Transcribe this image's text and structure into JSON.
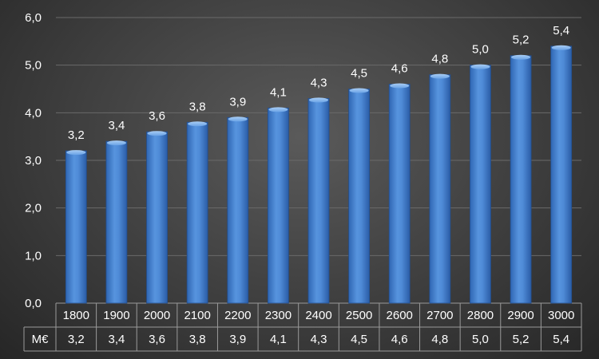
{
  "chart_data": {
    "type": "bar",
    "categories": [
      "1800",
      "1900",
      "2000",
      "2100",
      "2200",
      "2300",
      "2400",
      "2500",
      "2600",
      "2700",
      "2800",
      "2900",
      "3000"
    ],
    "series": [
      {
        "name": "M€",
        "values": [
          3.2,
          3.4,
          3.6,
          3.8,
          3.9,
          4.1,
          4.3,
          4.5,
          4.6,
          4.8,
          5.0,
          5.2,
          5.4
        ]
      }
    ],
    "value_labels": [
      "3,2",
      "3,4",
      "3,6",
      "3,8",
      "3,9",
      "4,1",
      "4,3",
      "4,5",
      "4,6",
      "4,8",
      "5,0",
      "5,2",
      "5,4"
    ],
    "ylim": [
      0,
      6
    ],
    "y_ticks": [
      "0,0",
      "1,0",
      "2,0",
      "3,0",
      "4,0",
      "5,0",
      "6,0"
    ],
    "grid": true,
    "data_table": true,
    "title": "",
    "xlabel": "",
    "ylabel": "",
    "colors": {
      "bar": "#4a86d0",
      "bar_dark": "#2a5ea8",
      "grid": "#6a6a6a",
      "table_border": "#9a9a9a",
      "text": "#ffffff"
    }
  }
}
